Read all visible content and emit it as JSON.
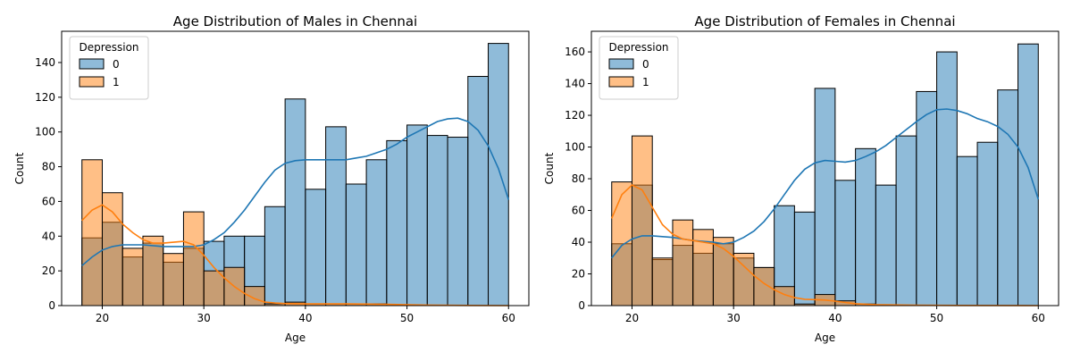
{
  "chart_data": [
    {
      "type": "histogram",
      "title": "Age Distribution of Males in Chennai",
      "xlabel": "Age",
      "ylabel": "Count",
      "xlim": [
        16,
        62
      ],
      "ylim": [
        0,
        158
      ],
      "xticks": [
        20,
        30,
        40,
        50,
        60
      ],
      "yticks": [
        0,
        20,
        40,
        60,
        80,
        100,
        120,
        140
      ],
      "legend_title": "Depression",
      "legend_position": "top-left",
      "bin_edges": [
        18,
        20,
        22,
        24,
        26,
        28,
        30,
        32,
        34,
        36,
        38,
        40,
        42,
        44,
        46,
        48,
        50,
        52,
        54,
        56,
        58,
        60
      ],
      "series": [
        {
          "name": "0",
          "color": "#1f77b4",
          "values": [
            39,
            48,
            28,
            36,
            25,
            33,
            37,
            40,
            40,
            57,
            119,
            67,
            103,
            70,
            84,
            95,
            104,
            98,
            97,
            132,
            151
          ],
          "kde": [
            [
              18,
              23
            ],
            [
              19,
              28
            ],
            [
              20,
              32
            ],
            [
              21,
              34
            ],
            [
              22,
              35
            ],
            [
              24,
              35
            ],
            [
              26,
              34
            ],
            [
              28,
              34
            ],
            [
              29,
              34
            ],
            [
              30,
              35
            ],
            [
              31,
              38
            ],
            [
              32,
              42
            ],
            [
              33,
              48
            ],
            [
              34,
              55
            ],
            [
              35,
              63
            ],
            [
              36,
              71
            ],
            [
              37,
              78
            ],
            [
              38,
              82
            ],
            [
              39,
              83.5
            ],
            [
              40,
              84
            ],
            [
              42,
              84
            ],
            [
              44,
              84
            ],
            [
              45,
              85
            ],
            [
              46,
              86
            ],
            [
              47,
              88
            ],
            [
              48,
              90
            ],
            [
              49,
              93
            ],
            [
              50,
              97
            ],
            [
              51,
              100
            ],
            [
              52,
              103
            ],
            [
              53,
              106
            ],
            [
              54,
              107.5
            ],
            [
              55,
              108
            ],
            [
              56,
              106
            ],
            [
              57,
              101
            ],
            [
              58,
              92
            ],
            [
              59,
              79
            ],
            [
              60,
              61
            ]
          ]
        },
        {
          "name": "1",
          "color": "#ff7f0e",
          "values": [
            84,
            65,
            33,
            40,
            30,
            54,
            20,
            22,
            11,
            1,
            2,
            1,
            1,
            1,
            1,
            0,
            0,
            0,
            0,
            0,
            0
          ],
          "kde": [
            [
              18,
              49
            ],
            [
              19,
              55
            ],
            [
              20,
              58
            ],
            [
              21,
              54
            ],
            [
              22,
              47
            ],
            [
              23,
              42
            ],
            [
              24,
              38
            ],
            [
              25,
              36
            ],
            [
              26,
              36
            ],
            [
              27,
              36.5
            ],
            [
              28,
              37
            ],
            [
              29,
              35
            ],
            [
              30,
              29
            ],
            [
              31,
              22
            ],
            [
              32,
              16
            ],
            [
              33,
              11
            ],
            [
              34,
              7
            ],
            [
              35,
              4
            ],
            [
              36,
              2
            ],
            [
              37,
              1.5
            ],
            [
              38,
              1.2
            ],
            [
              40,
              1
            ],
            [
              44,
              1
            ],
            [
              48,
              0.7
            ],
            [
              52,
              0.3
            ],
            [
              56,
              0.1
            ],
            [
              60,
              0
            ]
          ]
        }
      ]
    },
    {
      "type": "histogram",
      "title": "Age Distribution of Females in Chennai",
      "xlabel": "Age",
      "ylabel": "Count",
      "xlim": [
        16,
        62
      ],
      "ylim": [
        0,
        173
      ],
      "xticks": [
        20,
        30,
        40,
        50,
        60
      ],
      "yticks": [
        0,
        20,
        40,
        60,
        80,
        100,
        120,
        140,
        160
      ],
      "legend_title": "Depression",
      "legend_position": "top-left",
      "bin_edges": [
        18,
        20,
        22,
        24,
        26,
        28,
        30,
        32,
        34,
        36,
        38,
        40,
        42,
        44,
        46,
        48,
        50,
        52,
        54,
        56,
        58,
        60
      ],
      "series": [
        {
          "name": "0",
          "color": "#1f77b4",
          "values": [
            39,
            76,
            29,
            38,
            33,
            39,
            30,
            24,
            63,
            59,
            137,
            79,
            99,
            76,
            107,
            135,
            160,
            94,
            103,
            136,
            165
          ],
          "kde": [
            [
              18,
              30
            ],
            [
              19,
              38
            ],
            [
              20,
              42
            ],
            [
              21,
              44
            ],
            [
              22,
              44
            ],
            [
              24,
              43
            ],
            [
              26,
              41
            ],
            [
              28,
              40
            ],
            [
              29,
              39
            ],
            [
              30,
              40
            ],
            [
              31,
              43
            ],
            [
              32,
              47
            ],
            [
              33,
              53
            ],
            [
              34,
              61
            ],
            [
              35,
              70
            ],
            [
              36,
              79
            ],
            [
              37,
              86
            ],
            [
              38,
              90
            ],
            [
              39,
              91.5
            ],
            [
              40,
              91
            ],
            [
              41,
              90.5
            ],
            [
              42,
              91.5
            ],
            [
              43,
              94
            ],
            [
              44,
              97
            ],
            [
              45,
              101
            ],
            [
              46,
              106
            ],
            [
              47,
              111
            ],
            [
              48,
              116
            ],
            [
              49,
              120.5
            ],
            [
              50,
              123.5
            ],
            [
              51,
              124
            ],
            [
              52,
              123
            ],
            [
              53,
              121
            ],
            [
              54,
              118
            ],
            [
              55,
              116
            ],
            [
              56,
              113
            ],
            [
              57,
              108
            ],
            [
              58,
              100
            ],
            [
              59,
              87
            ],
            [
              60,
              67
            ]
          ]
        },
        {
          "name": "1",
          "color": "#ff7f0e",
          "values": [
            78,
            107,
            30,
            54,
            48,
            43,
            33,
            24,
            12,
            1,
            7,
            3,
            1,
            0,
            0,
            0,
            0,
            0,
            0,
            0,
            0
          ],
          "kde": [
            [
              18,
              55
            ],
            [
              19,
              70
            ],
            [
              20,
              76
            ],
            [
              21,
              73
            ],
            [
              22,
              62
            ],
            [
              23,
              51
            ],
            [
              24,
              45
            ],
            [
              25,
              42
            ],
            [
              26,
              41
            ],
            [
              27,
              40
            ],
            [
              28,
              39
            ],
            [
              29,
              36
            ],
            [
              30,
              31
            ],
            [
              31,
              25
            ],
            [
              32,
              19
            ],
            [
              33,
              14
            ],
            [
              34,
              10
            ],
            [
              35,
              7
            ],
            [
              36,
              5
            ],
            [
              37,
              4
            ],
            [
              38,
              3.8
            ],
            [
              39,
              3.5
            ],
            [
              40,
              2.8
            ],
            [
              41,
              2
            ],
            [
              42,
              1.2
            ],
            [
              44,
              0.6
            ],
            [
              48,
              0.2
            ],
            [
              52,
              0.1
            ],
            [
              60,
              0
            ]
          ]
        }
      ]
    }
  ]
}
